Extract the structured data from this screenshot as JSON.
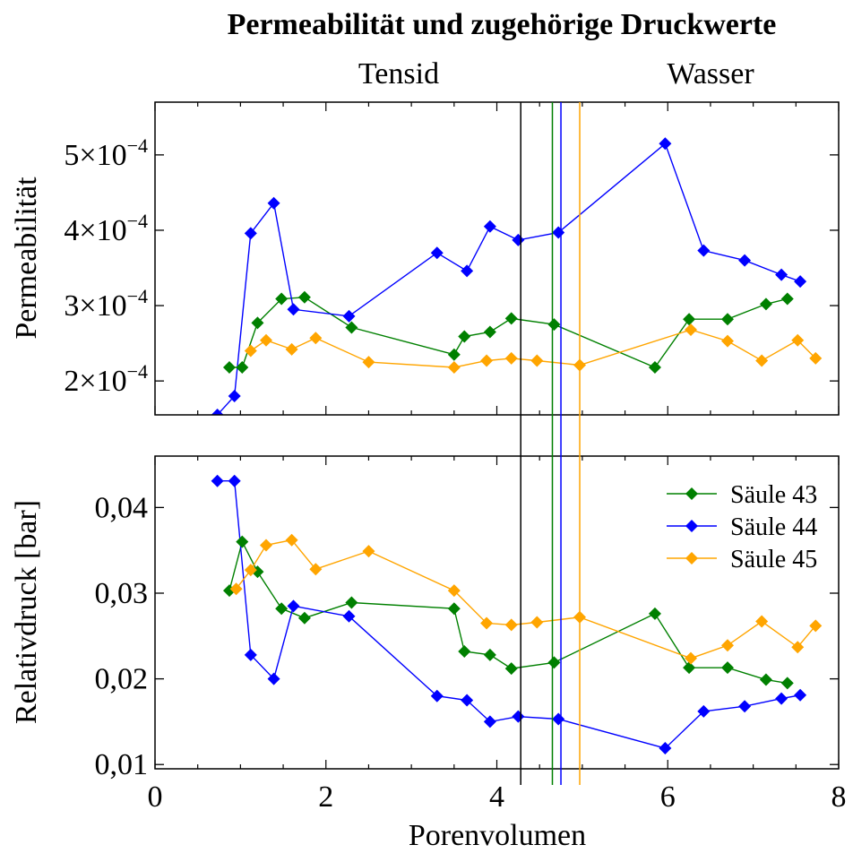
{
  "chart_data": {
    "type": "line",
    "title": "Permeabilität und zugehörige Druckwerte",
    "xlabel": "Porenvolumen",
    "xlim": [
      0,
      8
    ],
    "x_ticks": [
      "0",
      "2",
      "4",
      "6",
      "8"
    ],
    "grid": false,
    "region_labels": [
      "Tensid",
      "Wasser"
    ],
    "vertical_lines": [
      {
        "x": 4.28,
        "color": "#000000"
      },
      {
        "x": 4.65,
        "color": "#008000"
      },
      {
        "x": 4.75,
        "color": "#0000ff"
      },
      {
        "x": 4.97,
        "color": "#ffa500"
      }
    ],
    "legend": {
      "placement": "top-right of lower panel",
      "entries": [
        "Säule 43",
        "Säule 44",
        "Säule 45"
      ]
    },
    "series_colors": {
      "Säule 43": "#008000",
      "Säule 44": "#0000ff",
      "Säule 45": "#ffa500"
    },
    "panels": [
      {
        "id": "permeability",
        "ylabel": "Permeabilität",
        "ylim": [
          0.000155,
          0.00057
        ],
        "y_ticks": [
          {
            "value": 0.0002,
            "mantissa": "2×10",
            "exp": "−4"
          },
          {
            "value": 0.0003,
            "mantissa": "3×10",
            "exp": "−4"
          },
          {
            "value": 0.0004,
            "mantissa": "4×10",
            "exp": "−4"
          },
          {
            "value": 0.0005,
            "mantissa": "5×10",
            "exp": "−4"
          }
        ],
        "series": [
          {
            "name": "Säule 43",
            "x": [
              0.87,
              1.02,
              1.2,
              1.48,
              1.75,
              2.3,
              3.5,
              3.62,
              3.92,
              4.17,
              4.67,
              5.85,
              6.25,
              6.7,
              7.15,
              7.4
            ],
            "y": [
              0.000218,
              0.000218,
              0.000277,
              0.000309,
              0.000311,
              0.000271,
              0.000235,
              0.000259,
              0.000265,
              0.000283,
              0.000275,
              0.000218,
              0.000282,
              0.000282,
              0.000302,
              0.000309
            ]
          },
          {
            "name": "Säule 44",
            "x": [
              0.73,
              0.93,
              1.12,
              1.39,
              1.62,
              2.27,
              3.3,
              3.65,
              3.92,
              4.25,
              4.72,
              5.97,
              6.42,
              6.9,
              7.33,
              7.55
            ],
            "y": [
              0.000155,
              0.00018,
              0.000396,
              0.000436,
              0.000295,
              0.000286,
              0.00037,
              0.000346,
              0.000405,
              0.000387,
              0.000397,
              0.000515,
              0.000373,
              0.00036,
              0.000341,
              0.000332
            ]
          },
          {
            "name": "Säule 45",
            "x": [
              1.12,
              1.3,
              1.6,
              1.88,
              2.5,
              3.5,
              3.88,
              4.17,
              4.47,
              4.97,
              6.27,
              6.7,
              7.1,
              7.52,
              7.73
            ],
            "y": [
              0.00024,
              0.000254,
              0.000242,
              0.000257,
              0.000225,
              0.000218,
              0.000227,
              0.00023,
              0.000227,
              0.000221,
              0.000268,
              0.000253,
              0.000227,
              0.000254,
              0.00023
            ]
          }
        ]
      },
      {
        "id": "pressure",
        "ylabel": "Relativdruck [bar]",
        "ylim": [
          0.0095,
          0.046
        ],
        "y_ticks": [
          {
            "value": 0.01,
            "mantissa": "0,01",
            "exp": ""
          },
          {
            "value": 0.02,
            "mantissa": "0,02",
            "exp": ""
          },
          {
            "value": 0.03,
            "mantissa": "0,03",
            "exp": ""
          },
          {
            "value": 0.04,
            "mantissa": "0,04",
            "exp": ""
          }
        ],
        "series": [
          {
            "name": "Säule 43",
            "x": [
              0.87,
              1.02,
              1.2,
              1.48,
              1.75,
              2.3,
              3.5,
              3.62,
              3.92,
              4.17,
              4.67,
              5.85,
              6.25,
              6.7,
              7.15,
              7.4
            ],
            "y": [
              0.0303,
              0.036,
              0.0325,
              0.0282,
              0.0271,
              0.0289,
              0.0282,
              0.0232,
              0.0228,
              0.0212,
              0.0219,
              0.0276,
              0.0213,
              0.0213,
              0.0199,
              0.0195
            ]
          },
          {
            "name": "Säule 44",
            "x": [
              0.73,
              0.93,
              1.12,
              1.39,
              1.62,
              2.27,
              3.3,
              3.65,
              3.92,
              4.25,
              4.72,
              5.97,
              6.42,
              6.9,
              7.33,
              7.55
            ],
            "y": [
              0.0431,
              0.0431,
              0.0228,
              0.02,
              0.0285,
              0.0273,
              0.018,
              0.0175,
              0.015,
              0.0156,
              0.0153,
              0.0119,
              0.0162,
              0.0168,
              0.0177,
              0.0181
            ]
          },
          {
            "name": "Säule 45",
            "x": [
              0.95,
              1.12,
              1.3,
              1.6,
              1.88,
              2.5,
              3.5,
              3.88,
              4.17,
              4.47,
              4.97,
              6.27,
              6.7,
              7.1,
              7.52,
              7.73
            ],
            "y": [
              0.0305,
              0.0327,
              0.0356,
              0.0362,
              0.0328,
              0.0349,
              0.0303,
              0.0265,
              0.0263,
              0.0266,
              0.0272,
              0.0224,
              0.0239,
              0.0267,
              0.0237,
              0.0262
            ]
          }
        ]
      }
    ]
  }
}
